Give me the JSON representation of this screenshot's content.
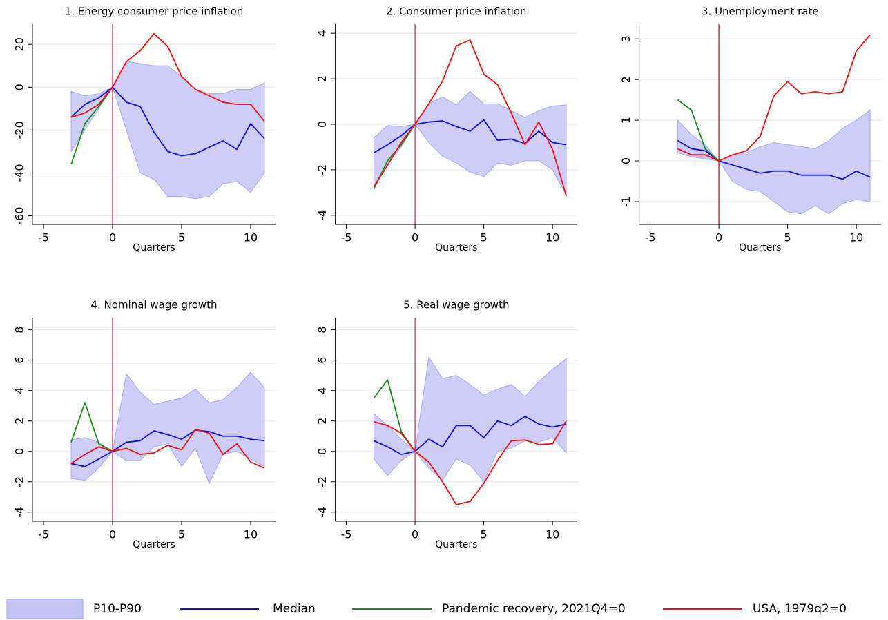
{
  "chart_data": [
    {
      "type": "line",
      "title": "1. Energy consumer price inflation",
      "xlabel": "Quarters",
      "x": [
        -3,
        -2,
        -1,
        0,
        1,
        2,
        3,
        4,
        5,
        6,
        7,
        8,
        9,
        10,
        11
      ],
      "xlim": [
        -5.8,
        11.8
      ],
      "xticks": [
        -5,
        0,
        5,
        10
      ],
      "ylim": [
        -64,
        29.4
      ],
      "yticks": [
        20,
        0,
        -20,
        -40,
        -60
      ],
      "grid": true,
      "vline": 0,
      "vline_color": "#c8346e",
      "legend": "bottom",
      "band": {
        "name": "P10-P90",
        "color": "#c4c4f7",
        "lower": [
          -30,
          -20,
          -10,
          0,
          -20,
          -40,
          -43,
          -51,
          -51,
          -52,
          -51,
          -45,
          -44,
          -49,
          -40
        ],
        "upper": [
          -2,
          -4,
          -3,
          0,
          12,
          11,
          10,
          10,
          5,
          -1,
          -3,
          -3,
          -1,
          -1,
          2
        ]
      },
      "series": [
        {
          "name": "Median",
          "color": "#1010e0",
          "values": [
            -14,
            -8,
            -5,
            0,
            -7,
            -9,
            -21,
            -30,
            -32,
            -31,
            -28,
            -25,
            -29,
            -17,
            -24
          ]
        },
        {
          "name": "Pandemic recovery, 2021Q4=0",
          "color": "#1a8a1a",
          "values": [
            -36,
            -17,
            -9,
            0,
            null,
            null,
            null,
            null,
            null,
            null,
            null,
            null,
            null,
            null,
            null
          ]
        },
        {
          "name": "USA, 1979q2=0",
          "color": "#f01010",
          "values": [
            -14,
            -12,
            -8,
            0,
            12,
            17,
            25,
            19,
            5,
            -1,
            -4,
            -7,
            -8,
            -8,
            -16
          ]
        }
      ]
    },
    {
      "type": "line",
      "title": "2. Consumer price inflation",
      "xlabel": "Quarters",
      "x": [
        -3,
        -2,
        -1,
        0,
        1,
        2,
        3,
        4,
        5,
        6,
        7,
        8,
        9,
        10,
        11
      ],
      "xlim": [
        -5.8,
        11.8
      ],
      "xticks": [
        -5,
        0,
        5,
        10
      ],
      "ylim": [
        -4.4,
        4.4
      ],
      "yticks": [
        4,
        2,
        0,
        -2,
        -4
      ],
      "grid": true,
      "vline": 0,
      "vline_color": "#c8346e",
      "band": {
        "name": "P10-P90",
        "color": "#c4c4f7",
        "lower": [
          -2.7,
          -1.7,
          -1.0,
          0,
          -0.8,
          -1.4,
          -1.7,
          -2.1,
          -2.3,
          -1.7,
          -1.8,
          -1.6,
          -1.6,
          -2.0,
          -3.1
        ],
        "upper": [
          -0.6,
          -0.05,
          -0.1,
          0,
          0.9,
          1.2,
          0.85,
          1.45,
          0.9,
          0.9,
          0.6,
          0.3,
          0.6,
          0.8,
          0.85
        ]
      },
      "series": [
        {
          "name": "Median",
          "color": "#1010e0",
          "values": [
            -1.25,
            -0.9,
            -0.5,
            0,
            0.1,
            0.15,
            -0.1,
            -0.3,
            0.2,
            -0.7,
            -0.65,
            -0.85,
            -0.3,
            -0.8,
            -0.9
          ]
        },
        {
          "name": "Pandemic recovery, 2021Q4=0",
          "color": "#1a8a1a",
          "values": [
            -2.85,
            -1.6,
            -0.9,
            0,
            null,
            null,
            null,
            null,
            null,
            null,
            null,
            null,
            null,
            null,
            null
          ]
        },
        {
          "name": "USA, 1979q2=0",
          "color": "#f01010",
          "values": [
            -2.75,
            -1.8,
            -0.8,
            0,
            0.9,
            1.9,
            3.45,
            3.7,
            2.2,
            1.75,
            0.5,
            -0.9,
            0.1,
            -1.1,
            -3.15
          ]
        }
      ]
    },
    {
      "type": "line",
      "title": "3. Unemployment rate",
      "xlabel": "Quarters",
      "x": [
        -3,
        -2,
        -1,
        0,
        1,
        2,
        3,
        4,
        5,
        6,
        7,
        8,
        9,
        10,
        11
      ],
      "xlim": [
        -5.8,
        11.8
      ],
      "xticks": [
        -5,
        0,
        5,
        10
      ],
      "ylim": [
        -1.56,
        3.36
      ],
      "yticks": [
        3,
        2,
        1,
        0,
        -1
      ],
      "grid": true,
      "vline": 0,
      "vline_color": "#d0102a",
      "band": {
        "name": "P10-P90",
        "color": "#c4c4f7",
        "lower": [
          0.2,
          0.1,
          0.05,
          0,
          -0.5,
          -0.7,
          -0.75,
          -1.0,
          -1.25,
          -1.3,
          -1.1,
          -1.3,
          -1.05,
          -0.95,
          -1.0
        ],
        "upper": [
          1.0,
          0.65,
          0.4,
          0,
          0.15,
          0.2,
          0.35,
          0.45,
          0.4,
          0.35,
          0.3,
          0.5,
          0.8,
          1.0,
          1.25
        ]
      },
      "series": [
        {
          "name": "Median",
          "color": "#1010e0",
          "values": [
            0.5,
            0.3,
            0.25,
            0,
            -0.1,
            -0.2,
            -0.3,
            -0.25,
            -0.25,
            -0.35,
            -0.35,
            -0.35,
            -0.45,
            -0.25,
            -0.4
          ]
        },
        {
          "name": "Pandemic recovery, 2021Q4=0",
          "color": "#1a8a1a",
          "values": [
            1.5,
            1.25,
            0.3,
            0,
            null,
            null,
            null,
            null,
            null,
            null,
            null,
            null,
            null,
            null,
            null
          ]
        },
        {
          "name": "USA, 1979q2=0",
          "color": "#f01010",
          "values": [
            0.3,
            0.15,
            0.15,
            0,
            0.15,
            0.25,
            0.6,
            1.6,
            1.95,
            1.65,
            1.7,
            1.65,
            1.7,
            2.7,
            3.1
          ]
        }
      ]
    },
    {
      "type": "line",
      "title": "4. Nominal wage growth",
      "xlabel": "Quarters",
      "x": [
        -3,
        -2,
        -1,
        0,
        1,
        2,
        3,
        4,
        5,
        6,
        7,
        8,
        9,
        10,
        11
      ],
      "xlim": [
        -5.8,
        11.8
      ],
      "xticks": [
        -5,
        0,
        5,
        10
      ],
      "ylim": [
        -4.6,
        8.8
      ],
      "yticks": [
        8,
        6,
        4,
        2,
        0,
        -2,
        -4
      ],
      "grid": true,
      "vline": 0,
      "vline_color": "#c8346e",
      "band": {
        "name": "P10-P90",
        "color": "#c4c4f7",
        "lower": [
          -1.8,
          -1.9,
          -1.1,
          0,
          -0.6,
          -0.6,
          0.3,
          0.5,
          -1.0,
          0.2,
          -2.1,
          -0.2,
          0.0,
          -0.5,
          -1.0
        ],
        "upper": [
          0.75,
          0.9,
          0.6,
          0,
          5.1,
          3.9,
          3.1,
          3.3,
          3.5,
          4.1,
          3.2,
          3.4,
          4.2,
          5.2,
          4.2
        ]
      },
      "series": [
        {
          "name": "Median",
          "color": "#1010e0",
          "values": [
            -0.8,
            -1.0,
            -0.5,
            0,
            0.6,
            0.7,
            1.35,
            1.1,
            0.8,
            1.4,
            1.3,
            1.0,
            1.0,
            0.8,
            0.7
          ]
        },
        {
          "name": "Pandemic recovery, 2021Q4=0",
          "color": "#1a8a1a",
          "values": [
            0.6,
            3.2,
            0.5,
            0,
            null,
            null,
            null,
            null,
            null,
            null,
            null,
            null,
            null,
            null,
            null
          ]
        },
        {
          "name": "USA, 1979q2=0",
          "color": "#f01010",
          "values": [
            -0.8,
            -0.2,
            0.3,
            0,
            0.2,
            -0.2,
            -0.1,
            0.4,
            0.1,
            1.45,
            1.2,
            -0.2,
            0.5,
            -0.7,
            -1.1
          ]
        }
      ]
    },
    {
      "type": "line",
      "title": "5. Real wage growth",
      "xlabel": "Quarters",
      "x": [
        -3,
        -2,
        -1,
        0,
        1,
        2,
        3,
        4,
        5,
        6,
        7,
        8,
        9,
        10,
        11
      ],
      "xlim": [
        -5.8,
        11.8
      ],
      "xticks": [
        -5,
        0,
        5,
        10
      ],
      "ylim": [
        -4.6,
        8.8
      ],
      "yticks": [
        8,
        6,
        4,
        2,
        0,
        -2,
        -4
      ],
      "grid": true,
      "vline": 0,
      "vline_color": "#c8346e",
      "band": {
        "name": "P10-P90",
        "color": "#c4c4f7",
        "lower": [
          -0.5,
          -1.6,
          -0.6,
          0,
          -1.1,
          -1.9,
          -0.5,
          -0.9,
          -2.0,
          0.0,
          0.2,
          0.7,
          0.6,
          0.9,
          -0.1
        ],
        "upper": [
          2.5,
          1.7,
          0.8,
          0,
          6.2,
          4.8,
          5.0,
          4.4,
          3.7,
          4.1,
          4.4,
          3.6,
          4.6,
          5.4,
          6.1
        ]
      },
      "series": [
        {
          "name": "Median",
          "color": "#1010e0",
          "values": [
            0.7,
            0.3,
            -0.2,
            0,
            0.8,
            0.3,
            1.7,
            1.7,
            0.9,
            2.0,
            1.7,
            2.3,
            1.8,
            1.6,
            1.8
          ]
        },
        {
          "name": "Pandemic recovery, 2021Q4=0",
          "color": "#1a8a1a",
          "values": [
            3.5,
            4.7,
            1.3,
            0,
            null,
            null,
            null,
            null,
            null,
            null,
            null,
            null,
            null,
            null,
            null
          ]
        },
        {
          "name": "USA, 1979q2=0",
          "color": "#f01010",
          "values": [
            1.95,
            1.7,
            1.2,
            0,
            -0.7,
            -2.0,
            -3.5,
            -3.3,
            -2.1,
            -0.6,
            0.7,
            0.75,
            0.45,
            0.5,
            2.0
          ]
        }
      ]
    }
  ]
}
